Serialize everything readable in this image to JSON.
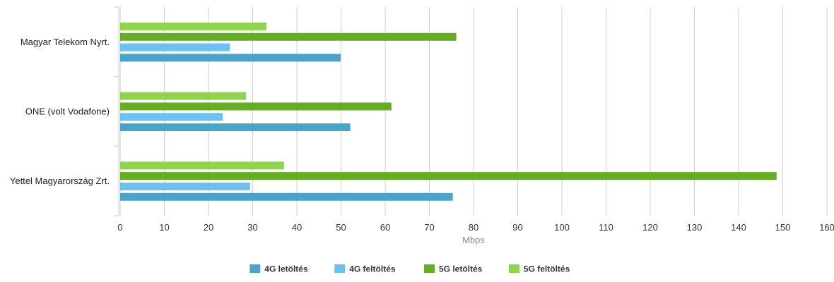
{
  "chart_data": {
    "type": "bar",
    "orientation": "horizontal",
    "categories": [
      "Magyar Telekom Nyrt.",
      "ONE (volt Vodafone)",
      "Yettel Magyarország Zrt."
    ],
    "series": [
      {
        "name": "4G letöltés",
        "color": "#4aa3c8",
        "values": [
          49.9,
          52.1,
          75.3
        ]
      },
      {
        "name": "4G feltöltés",
        "color": "#6cc1ee",
        "values": [
          24.8,
          23.2,
          29.4
        ]
      },
      {
        "name": "5G letöltés",
        "color": "#64ad24",
        "values": [
          76.1,
          61.4,
          148.6
        ]
      },
      {
        "name": "5G feltöltés",
        "color": "#8fd44c",
        "values": [
          33.1,
          28.5,
          37.1
        ]
      }
    ],
    "xlabel": "Mbps",
    "xlim": [
      0,
      160
    ],
    "xticks": [
      0,
      10,
      20,
      30,
      40,
      50,
      60,
      70,
      80,
      90,
      100,
      110,
      120,
      130,
      140,
      150,
      160
    ],
    "grid": true,
    "legend_position": "bottom"
  }
}
